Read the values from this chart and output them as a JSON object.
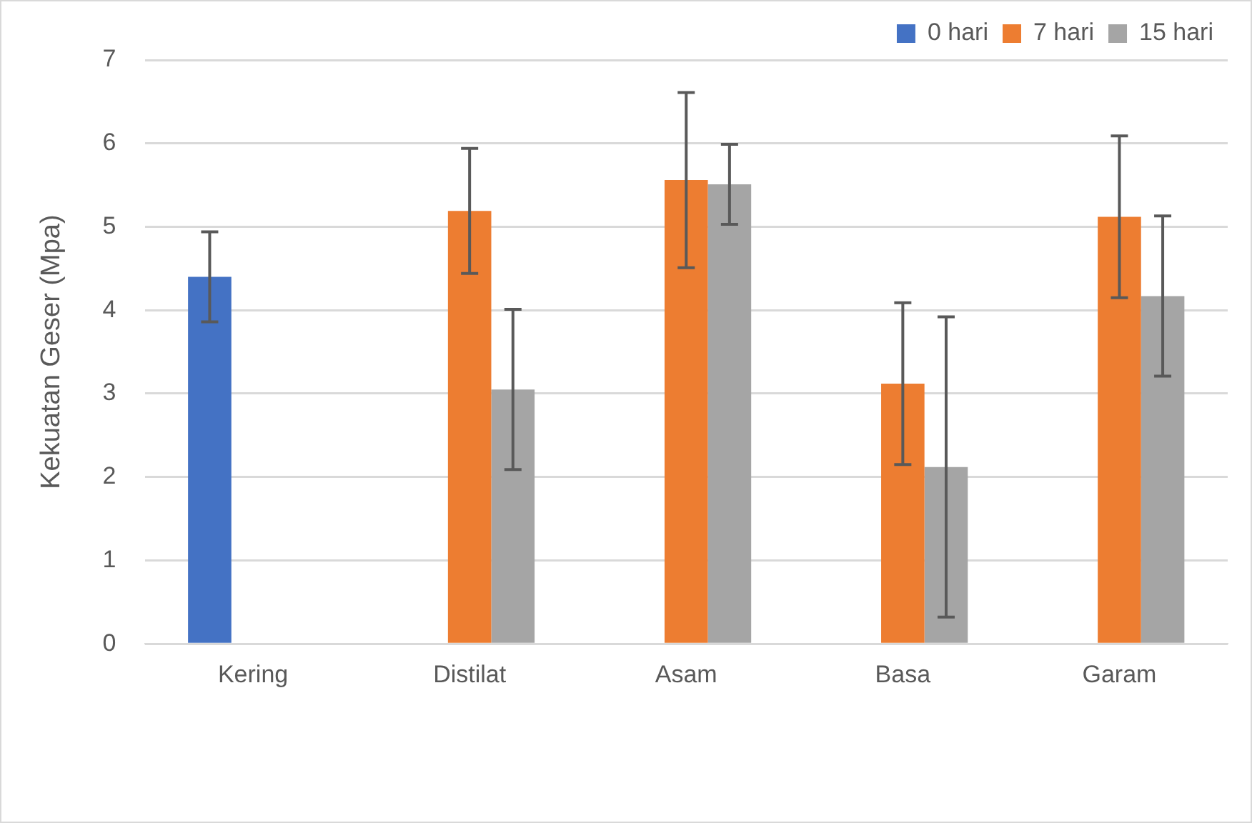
{
  "chart_data": {
    "type": "bar",
    "ylabel": "Kekuatan Geser (Mpa)",
    "categories": [
      "Kering",
      "Distilat",
      "Asam",
      "Basa",
      "Garam"
    ],
    "series": [
      {
        "name": "0 hari",
        "color": "#4472c4",
        "values": [
          4.4,
          null,
          null,
          null,
          null
        ],
        "errors": [
          0.54,
          null,
          null,
          null,
          null
        ]
      },
      {
        "name": "7 hari",
        "color": "#ed7d31",
        "values": [
          null,
          5.19,
          5.56,
          3.12,
          5.12
        ],
        "errors": [
          null,
          0.75,
          1.05,
          0.97,
          0.97
        ]
      },
      {
        "name": "15 hari",
        "color": "#a5a5a5",
        "values": [
          null,
          3.05,
          5.51,
          2.12,
          4.17
        ],
        "errors": [
          null,
          0.96,
          0.48,
          1.8,
          0.96
        ]
      }
    ],
    "ylim": [
      0,
      7
    ],
    "yticks": [
      0,
      1,
      2,
      3,
      4,
      5,
      6,
      7
    ],
    "grid": "y",
    "legend": "top right"
  }
}
